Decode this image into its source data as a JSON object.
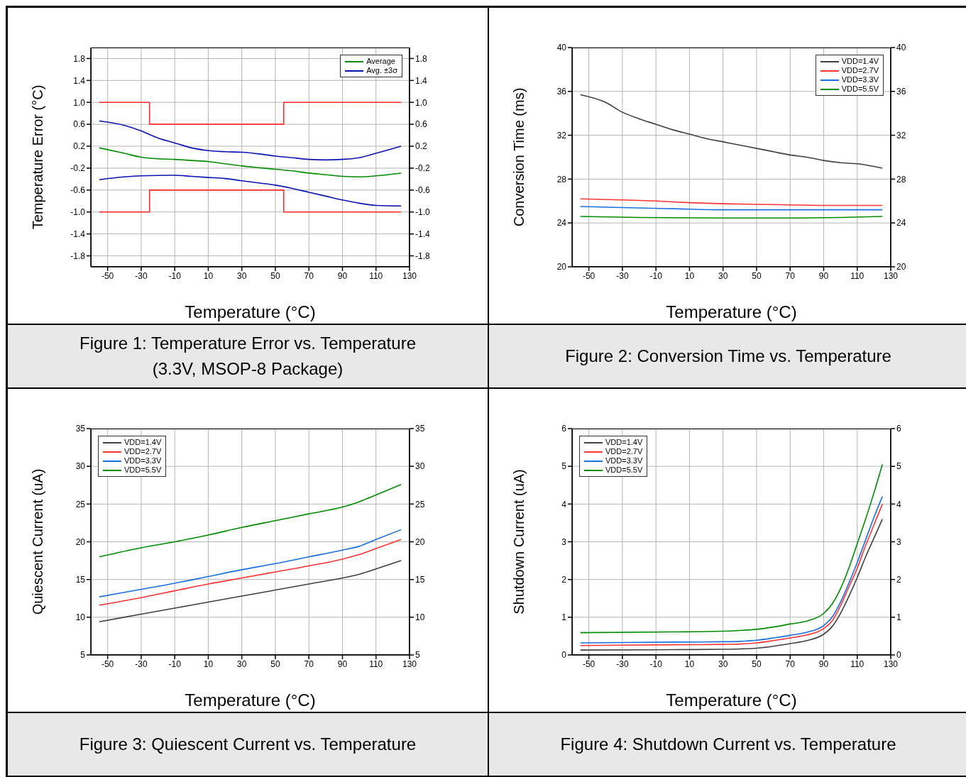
{
  "chart_data": [
    {
      "type": "line",
      "title": "Figure 1: Temperature Error vs. Temperature (3.3V, MSOP-8 Package)",
      "xlabel": "Temperature (°C)",
      "ylabel": "Temperature Error (°C)",
      "xlim": [
        -60,
        130
      ],
      "xticks": [
        -50,
        -30,
        -10,
        10,
        30,
        50,
        70,
        90,
        110,
        130
      ],
      "ylim": [
        -2.0,
        2.0
      ],
      "yticks": [
        -1.8,
        -1.4,
        {
          "value": -1,
          "label": "-1.0"
        },
        -0.6,
        -0.2,
        0.2,
        0.6,
        {
          "value": 1,
          "label": "1.0"
        },
        1.4,
        1.8
      ],
      "y2lim": [
        -2.0,
        2.0
      ],
      "y2ticks": [
        -1.8,
        -1.4,
        {
          "value": -1,
          "label": "-1.0"
        },
        -0.6,
        -0.2,
        0.2,
        0.6,
        {
          "value": 1,
          "label": "1.0"
        },
        1.4,
        1.8
      ],
      "grid": true,
      "legend": "top right",
      "series": [
        {
          "type": "step",
          "color": "#ff2a2a",
          "x": [
            -55,
            -25,
            55,
            125
          ],
          "values": [
            1.0,
            0.6,
            1.0,
            1.0
          ]
        },
        {
          "type": "step",
          "color": "#ff2a2a",
          "x": [
            -55,
            -25,
            55,
            125
          ],
          "values": [
            -1.0,
            -0.6,
            -1.0,
            -1.0
          ]
        },
        {
          "name": "Average",
          "color": "#008c00",
          "x": [
            -55,
            -40,
            -30,
            -20,
            -10,
            0,
            10,
            20,
            30,
            40,
            50,
            60,
            70,
            80,
            90,
            100,
            110,
            125
          ],
          "values": [
            0.17,
            0.07,
            0.0,
            -0.03,
            -0.04,
            -0.06,
            -0.08,
            -0.12,
            -0.16,
            -0.19,
            -0.22,
            -0.25,
            -0.29,
            -0.32,
            -0.35,
            -0.36,
            -0.34,
            -0.29
          ]
        },
        {
          "name": "Avg. ±3σ",
          "color": "#0a14b4",
          "x": [
            -55,
            -40,
            -30,
            -20,
            -10,
            0,
            10,
            20,
            30,
            40,
            50,
            60,
            70,
            80,
            90,
            100,
            110,
            125
          ],
          "values": [
            0.66,
            0.58,
            0.48,
            0.35,
            0.26,
            0.17,
            0.12,
            0.1,
            0.09,
            0.06,
            0.02,
            -0.01,
            -0.04,
            -0.05,
            -0.04,
            -0.01,
            0.07,
            0.2
          ]
        },
        {
          "color": "#0a14b4",
          "x": [
            -55,
            -40,
            -30,
            -10,
            0,
            10,
            20,
            30,
            40,
            50,
            60,
            70,
            80,
            90,
            100,
            110,
            125
          ],
          "values": [
            -0.41,
            -0.36,
            -0.34,
            -0.33,
            -0.35,
            -0.37,
            -0.39,
            -0.43,
            -0.47,
            -0.51,
            -0.57,
            -0.64,
            -0.71,
            -0.78,
            -0.84,
            -0.88,
            -0.89
          ]
        }
      ]
    },
    {
      "type": "line",
      "title": "Figure 2: Conversion Time vs. Temperature",
      "xlabel": "Temperature (°C)",
      "ylabel": "Conversion Time (ms)",
      "xlim": [
        -60,
        130
      ],
      "xticks": [
        -50,
        -30,
        -10,
        10,
        30,
        50,
        70,
        90,
        110,
        130
      ],
      "ylim": [
        20,
        40
      ],
      "yticks": [
        20,
        24,
        28,
        32,
        36,
        40
      ],
      "y2lim": [
        20,
        40
      ],
      "y2ticks": [
        20,
        24,
        28,
        32,
        36,
        40
      ],
      "grid": true,
      "legend": "top right",
      "series": [
        {
          "name": "VDD=1.4V",
          "color": "#404040",
          "x": [
            -55,
            -40,
            -30,
            -20,
            -10,
            0,
            10,
            20,
            30,
            40,
            50,
            60,
            70,
            80,
            90,
            100,
            110,
            125
          ],
          "values": [
            35.7,
            35.0,
            34.1,
            33.5,
            33.0,
            32.5,
            32.1,
            31.7,
            31.4,
            31.1,
            30.8,
            30.5,
            30.2,
            30.0,
            29.7,
            29.5,
            29.4,
            29.0
          ]
        },
        {
          "name": "VDD=2.7V",
          "color": "#ff3333",
          "x": [
            -55,
            -30,
            -10,
            10,
            30,
            50,
            70,
            90,
            110,
            125
          ],
          "values": [
            26.2,
            26.1,
            26.0,
            25.85,
            25.75,
            25.7,
            25.65,
            25.6,
            25.6,
            25.6
          ]
        },
        {
          "name": "VDD=3.3V",
          "color": "#1a6fe0",
          "x": [
            -55,
            -30,
            0,
            30,
            50,
            90,
            125
          ],
          "values": [
            25.5,
            25.4,
            25.3,
            25.2,
            25.2,
            25.2,
            25.2
          ]
        },
        {
          "name": "VDD=5.5V",
          "color": "#008c00",
          "x": [
            -55,
            -20,
            30,
            70,
            100,
            125
          ],
          "values": [
            24.6,
            24.5,
            24.45,
            24.45,
            24.5,
            24.6
          ]
        }
      ]
    },
    {
      "type": "line",
      "title": "Figure 3: Quiescent Current vs. Temperature",
      "xlabel": "Temperature (°C)",
      "ylabel": "Quiescent Current (uA)",
      "xlim": [
        -60,
        130
      ],
      "xticks": [
        -50,
        -30,
        -10,
        10,
        30,
        50,
        70,
        90,
        110,
        130
      ],
      "ylim": [
        5,
        35
      ],
      "yticks": [
        5,
        10,
        15,
        20,
        25,
        30,
        35
      ],
      "y2lim": [
        5,
        35
      ],
      "y2ticks": [
        5,
        10,
        15,
        20,
        25,
        30,
        35
      ],
      "grid": true,
      "legend": "top left",
      "x": [
        -55,
        -30,
        -10,
        10,
        30,
        50,
        70,
        90,
        100,
        110,
        125
      ],
      "series": [
        {
          "name": "VDD=1.4V",
          "color": "#404040",
          "values": [
            9.4,
            10.4,
            11.2,
            12.0,
            12.8,
            13.6,
            14.4,
            15.2,
            15.7,
            16.4,
            17.5
          ]
        },
        {
          "name": "VDD=2.7V",
          "color": "#ff3333",
          "values": [
            11.6,
            12.6,
            13.5,
            14.4,
            15.2,
            16.0,
            16.8,
            17.7,
            18.3,
            19.1,
            20.3
          ]
        },
        {
          "name": "VDD=3.3V",
          "color": "#1a6fe0",
          "values": [
            12.7,
            13.7,
            14.5,
            15.4,
            16.3,
            17.1,
            18.0,
            18.9,
            19.4,
            20.3,
            21.6
          ]
        },
        {
          "name": "VDD=5.5V",
          "color": "#008c00",
          "values": [
            18.0,
            19.2,
            20.0,
            20.9,
            21.9,
            22.8,
            23.7,
            24.6,
            25.3,
            26.2,
            27.6
          ]
        }
      ]
    },
    {
      "type": "line",
      "title": "Figure 4: Shutdown Current vs. Temperature",
      "xlabel": "Temperature (°C)",
      "ylabel": "Shutdown Current (uA)",
      "xlim": [
        -60,
        130
      ],
      "xticks": [
        -50,
        -30,
        -10,
        10,
        30,
        50,
        70,
        90,
        110,
        130
      ],
      "ylim": [
        0,
        6
      ],
      "yticks": [
        0,
        1,
        2,
        3,
        4,
        5,
        6
      ],
      "y2lim": [
        0,
        6
      ],
      "y2ticks": [
        0,
        1,
        2,
        3,
        4,
        5,
        6
      ],
      "grid": true,
      "legend": "top left",
      "x": [
        -55,
        0,
        30,
        40,
        50,
        60,
        70,
        80,
        90,
        95,
        100,
        105,
        110,
        115,
        120,
        125
      ],
      "series": [
        {
          "name": "VDD=1.4V",
          "color": "#404040",
          "values": [
            0.13,
            0.14,
            0.15,
            0.16,
            0.18,
            0.23,
            0.3,
            0.38,
            0.55,
            0.75,
            1.1,
            1.55,
            2.05,
            2.6,
            3.1,
            3.6
          ]
        },
        {
          "name": "VDD=2.7V",
          "color": "#ff3333",
          "values": [
            0.25,
            0.27,
            0.28,
            0.29,
            0.32,
            0.38,
            0.45,
            0.53,
            0.7,
            0.9,
            1.3,
            1.8,
            2.3,
            2.9,
            3.45,
            4.0
          ]
        },
        {
          "name": "VDD=3.3V",
          "color": "#1a6fe0",
          "values": [
            0.32,
            0.34,
            0.35,
            0.36,
            0.39,
            0.45,
            0.52,
            0.6,
            0.78,
            1.0,
            1.4,
            1.9,
            2.45,
            3.05,
            3.65,
            4.2
          ]
        },
        {
          "name": "VDD=5.5V",
          "color": "#008c00",
          "values": [
            0.59,
            0.61,
            0.63,
            0.65,
            0.68,
            0.74,
            0.82,
            0.9,
            1.1,
            1.35,
            1.75,
            2.3,
            2.95,
            3.6,
            4.3,
            5.05
          ]
        }
      ]
    }
  ]
}
